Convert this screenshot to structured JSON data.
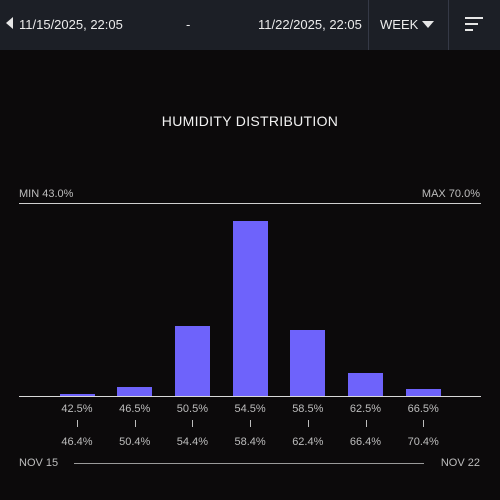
{
  "header": {
    "start_date": "11/15/2025, 22:05",
    "separator": "-",
    "end_date": "11/22/2025, 22:05",
    "period": "WEEK",
    "icons": [
      "chevron-left-icon",
      "caret-down-icon",
      "sort-icon"
    ]
  },
  "chart_data": {
    "type": "bar",
    "title": "HUMIDITY DISTRIBUTION",
    "min_label": "MIN 43.0%",
    "max_label": "MAX 70.0%",
    "bins": [
      {
        "from": "42.5%",
        "to": "46.4%",
        "value": 1
      },
      {
        "from": "46.5%",
        "to": "50.4%",
        "value": 5
      },
      {
        "from": "50.5%",
        "to": "54.4%",
        "value": 40
      },
      {
        "from": "54.5%",
        "to": "58.4%",
        "value": 100
      },
      {
        "from": "58.5%",
        "to": "62.4%",
        "value": 38
      },
      {
        "from": "62.5%",
        "to": "66.4%",
        "value": 13
      },
      {
        "from": "66.5%",
        "to": "70.4%",
        "value": 4
      }
    ],
    "ylim": [
      0,
      100
    ],
    "bar_color": "#6e63fb",
    "date_start": "NOV 15",
    "date_end": "NOV 22"
  }
}
